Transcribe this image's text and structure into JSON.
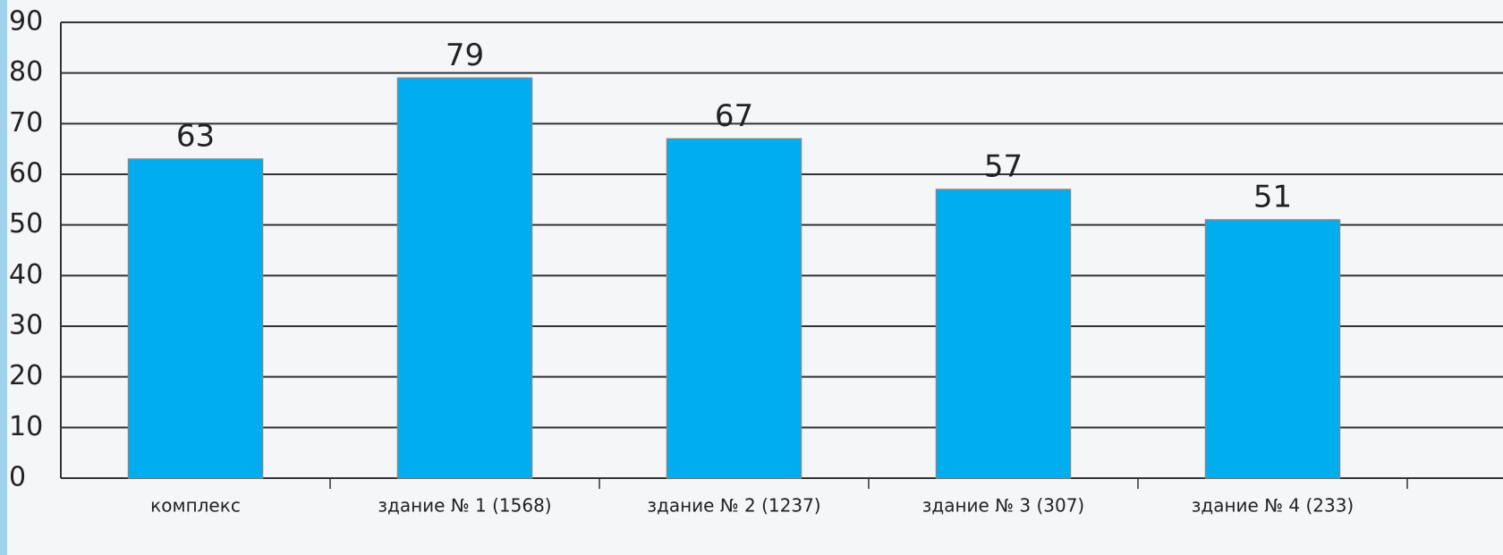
{
  "chart_data": {
    "type": "bar",
    "categories": [
      "комплекс",
      "здание № 1 (1568)",
      "здание № 2 (1237)",
      "здание № 3 (307)",
      "здание № 4 (233)"
    ],
    "values": [
      63,
      79,
      67,
      57,
      51
    ],
    "color": "#00aeef",
    "ylim": [
      0,
      90
    ],
    "yticks": [
      0,
      10,
      20,
      30,
      40,
      50,
      60,
      70,
      80,
      90
    ],
    "grid": true
  }
}
